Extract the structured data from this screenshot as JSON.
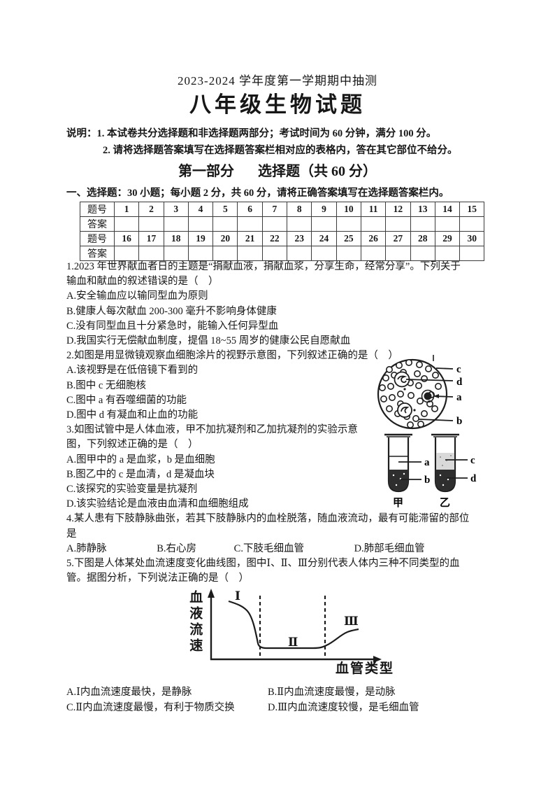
{
  "header": {
    "term_line": "2023-2024 学年度第一学期期中抽测",
    "title": "八年级生物试题"
  },
  "notes": {
    "note1": "说明：1. 本试卷共分选择题和非选择题两部分；考试时间为 60 分钟，满分 100 分。",
    "note2": "2. 请将选择题答案填写在选择题答案栏相对应的表格内，答在其它部位不给分。"
  },
  "section": {
    "part_label": "第一部分",
    "part_title": "选择题（共 60 分）",
    "intro": "一、选择题：30 小题；每小题 2 分，共 60 分，请将正确答案填写在选择题答案栏内。"
  },
  "answer_table": {
    "qnum_label": "题号",
    "answer_label": "答案",
    "numbers_row1": [
      "1",
      "2",
      "3",
      "4",
      "5",
      "6",
      "7",
      "8",
      "9",
      "10",
      "11",
      "12",
      "13",
      "14",
      "15"
    ],
    "answers_row1": [
      "",
      "",
      "",
      "",
      "",
      "",
      "",
      "",
      "",
      "",
      "",
      "",
      "",
      "",
      ""
    ],
    "numbers_row2": [
      "16",
      "17",
      "18",
      "19",
      "20",
      "21",
      "22",
      "23",
      "24",
      "25",
      "26",
      "27",
      "28",
      "29",
      "30"
    ],
    "answers_row2": [
      "",
      "",
      "",
      "",
      "",
      "",
      "",
      "",
      "",
      "",
      "",
      "",
      "",
      "",
      ""
    ]
  },
  "questions": {
    "q1": {
      "line1": "1.2023 年世界献血者日的主题是“捐献血液，捐献血浆，分享生命，经常分享”。下列关于",
      "line2": "输血和献血的叙述错误的是（　）",
      "optionA": "A.安全输血应以输同型血为原则",
      "optionB": "B.健康人每次献血 200-300 毫升不影响身体健康",
      "optionC": "C.没有同型血且十分紧急时，能输入任何异型血",
      "optionD": "D.我国实行无偿献血制度，提倡 18~55 周岁的健康公民自愿献血"
    },
    "q2": {
      "line1": "2.如图是用显微镜观察血细胞涂片的视野示意图，下列叙述正确的是（　）",
      "optionA": "A.该视野是在低倍镜下看到的",
      "optionB": "B.图中 c 无细胞核",
      "optionC": "C.图中 a 有吞噬细菌的功能",
      "optionD": "D.图中 d 有凝血和止血的功能"
    },
    "q3": {
      "line1": "3.如图试管中是人体血液，甲不加抗凝剂和乙加抗凝剂的实验示意",
      "line2": "图，下列叙述正确的是（　）",
      "optionA": "A.图甲中的 a 是血浆，b 是血细胞",
      "optionB": "B.图乙中的 c 是血清，d 是凝血块",
      "optionC": "C.该探究的实验变量是抗凝剂",
      "optionD": "D.该实验结论是血液由血清和血细胞组成"
    },
    "q4": {
      "line1": "4.某人患有下肢静脉曲张，若其下肢静脉内的血栓脱落，随血液流动，最有可能滞留的部位",
      "line2": "是",
      "options": [
        "A.肺静脉",
        "B.右心房",
        "C.下肢毛细血管",
        "D.肺部毛细血管"
      ]
    },
    "q5": {
      "line1": "5.下图是人体某处血流速度变化曲线图，图中Ⅰ、Ⅱ、Ⅲ分别代表人体内三种不同类型的血",
      "line2": "管。据图分析，下列说法正确的是（　）",
      "optionA": "A.Ⅰ内血流速度最快，是静脉",
      "optionB": "B.Ⅱ内血流速度最慢，是动脉",
      "optionC": "C.Ⅱ内血流速度最慢，有利于物质交换",
      "optionD": "D.Ⅲ内血流速度较慢，是毛细血管"
    }
  },
  "figures": {
    "blood_smear": {
      "label_a": "a",
      "label_b": "b",
      "label_c": "c",
      "label_d": "d"
    },
    "test_tubes": {
      "label_a": "a",
      "label_b": "b",
      "label_c": "c",
      "label_d": "d",
      "tube1_name": "甲",
      "tube2_name": "乙"
    },
    "flow_curve": {
      "ylabel": "血液流速",
      "xlabel": "血管类型",
      "region1": "Ⅰ",
      "region2": "Ⅱ",
      "region3": "Ⅲ"
    }
  }
}
